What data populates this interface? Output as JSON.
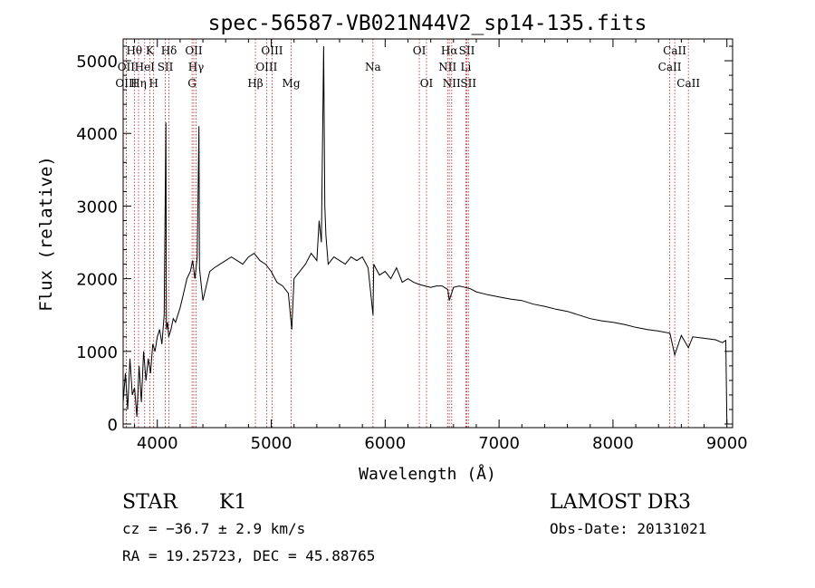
{
  "chart_data": {
    "type": "line",
    "title": "spec-56587-VB021N44V2_sp14-135.fits",
    "xlabel": "Wavelength (Å)",
    "ylabel": "Flux (relative)",
    "xlim": [
      3700,
      9050
    ],
    "ylim": [
      -50,
      5300
    ],
    "xticks": [
      4000,
      5000,
      6000,
      7000,
      8000,
      9000
    ],
    "yticks": [
      0,
      1000,
      2000,
      3000,
      4000,
      5000
    ],
    "grid": false,
    "lines": [
      {
        "label": "Hθ",
        "x": 3798,
        "row": 0
      },
      {
        "label": "K",
        "x": 3934,
        "row": 0
      },
      {
        "label": "Hδ",
        "x": 4102,
        "row": 0
      },
      {
        "label": "OII",
        "x": 4320,
        "row": 0
      },
      {
        "label": "OIII",
        "x": 5007,
        "row": 0
      },
      {
        "label": "OI",
        "x": 6300,
        "row": 0
      },
      {
        "label": "Hα",
        "x": 6563,
        "row": 0
      },
      {
        "label": "SII",
        "x": 6717,
        "row": 0
      },
      {
        "label": "CaII",
        "x": 8542,
        "row": 0
      },
      {
        "label": "OII",
        "x": 3727,
        "row": 1
      },
      {
        "label": "HeI",
        "x": 3889,
        "row": 1
      },
      {
        "label": "SII",
        "x": 4070,
        "row": 1
      },
      {
        "label": "Hγ",
        "x": 4340,
        "row": 1
      },
      {
        "label": "OIII",
        "x": 4959,
        "row": 1
      },
      {
        "label": "Na",
        "x": 5893,
        "row": 1
      },
      {
        "label": "NII",
        "x": 6548,
        "row": 1
      },
      {
        "label": "Li",
        "x": 6708,
        "row": 1
      },
      {
        "label": "CaII",
        "x": 8498,
        "row": 1
      },
      {
        "label": "OIII",
        "x": 3727,
        "row": 2
      },
      {
        "label": "Hη",
        "x": 3835,
        "row": 2
      },
      {
        "label": "H",
        "x": 3968,
        "row": 2
      },
      {
        "label": "G",
        "x": 4305,
        "row": 2
      },
      {
        "label": "Hβ",
        "x": 4861,
        "row": 2
      },
      {
        "label": "Mg",
        "x": 5175,
        "row": 2
      },
      {
        "label": "OI",
        "x": 6363,
        "row": 2
      },
      {
        "label": "NII",
        "x": 6584,
        "row": 2
      },
      {
        "label": "SII",
        "x": 6731,
        "row": 2
      },
      {
        "label": "CaII",
        "x": 8662,
        "row": 2
      }
    ],
    "series": [
      {
        "x": [
          3700,
          3720,
          3740,
          3760,
          3780,
          3800,
          3820,
          3840,
          3860,
          3880,
          3900,
          3920,
          3940,
          3960,
          3980,
          4000,
          4020,
          4040,
          4060,
          4075,
          4080,
          4090,
          4100,
          4120,
          4140,
          4160,
          4180,
          4200,
          4230,
          4260,
          4290,
          4310,
          4330,
          4350,
          4365,
          4370,
          4380,
          4400,
          4430,
          4460,
          4500,
          4550,
          4600,
          4650,
          4700,
          4750,
          4800,
          4850,
          4900,
          4950,
          5000,
          5050,
          5100,
          5150,
          5180,
          5200,
          5250,
          5300,
          5350,
          5400,
          5420,
          5440,
          5460,
          5470,
          5480,
          5500,
          5550,
          5600,
          5650,
          5700,
          5750,
          5800,
          5850,
          5893,
          5900,
          5950,
          6000,
          6050,
          6100,
          6150,
          6200,
          6250,
          6300,
          6350,
          6400,
          6450,
          6500,
          6550,
          6563,
          6600,
          6650,
          6700,
          6750,
          6800,
          6900,
          7000,
          7100,
          7200,
          7300,
          7400,
          7500,
          7600,
          7700,
          7800,
          7900,
          8000,
          8100,
          8200,
          8300,
          8400,
          8500,
          8542,
          8600,
          8662,
          8700,
          8800,
          8900,
          8960,
          8990,
          9000
        ],
        "y": [
          300,
          700,
          200,
          900,
          400,
          500,
          100,
          800,
          300,
          1000,
          600,
          900,
          700,
          1100,
          1000,
          1200,
          1300,
          1100,
          1500,
          4150,
          1300,
          1400,
          1200,
          1300,
          1450,
          1400,
          1500,
          1600,
          1800,
          2000,
          2100,
          2250,
          2000,
          2300,
          4100,
          2150,
          2000,
          1700,
          1900,
          2100,
          2150,
          2200,
          2250,
          2300,
          2250,
          2200,
          2300,
          2350,
          2250,
          2200,
          2100,
          1950,
          1900,
          1800,
          1300,
          2000,
          2100,
          2200,
          2350,
          2250,
          2800,
          2500,
          5200,
          3000,
          2600,
          2200,
          2300,
          2250,
          2200,
          2300,
          2250,
          2300,
          2150,
          1500,
          2200,
          2050,
          2100,
          2000,
          2150,
          1950,
          2000,
          1950,
          1920,
          1900,
          1880,
          1900,
          1900,
          1850,
          1700,
          1880,
          1900,
          1880,
          1860,
          1820,
          1780,
          1750,
          1720,
          1700,
          1650,
          1620,
          1580,
          1550,
          1500,
          1450,
          1420,
          1400,
          1370,
          1330,
          1300,
          1280,
          1250,
          950,
          1220,
          1050,
          1200,
          1180,
          1160,
          1120,
          1150,
          0
        ]
      }
    ]
  },
  "info": {
    "object_class": "STAR",
    "subclass": "K1",
    "survey": "LAMOST DR3",
    "cz": "cz = −36.7 ± 2.9 km/s",
    "obs_date": "Obs-Date: 20131021",
    "coords": "RA =  19.25723, DEC =  45.88765"
  }
}
